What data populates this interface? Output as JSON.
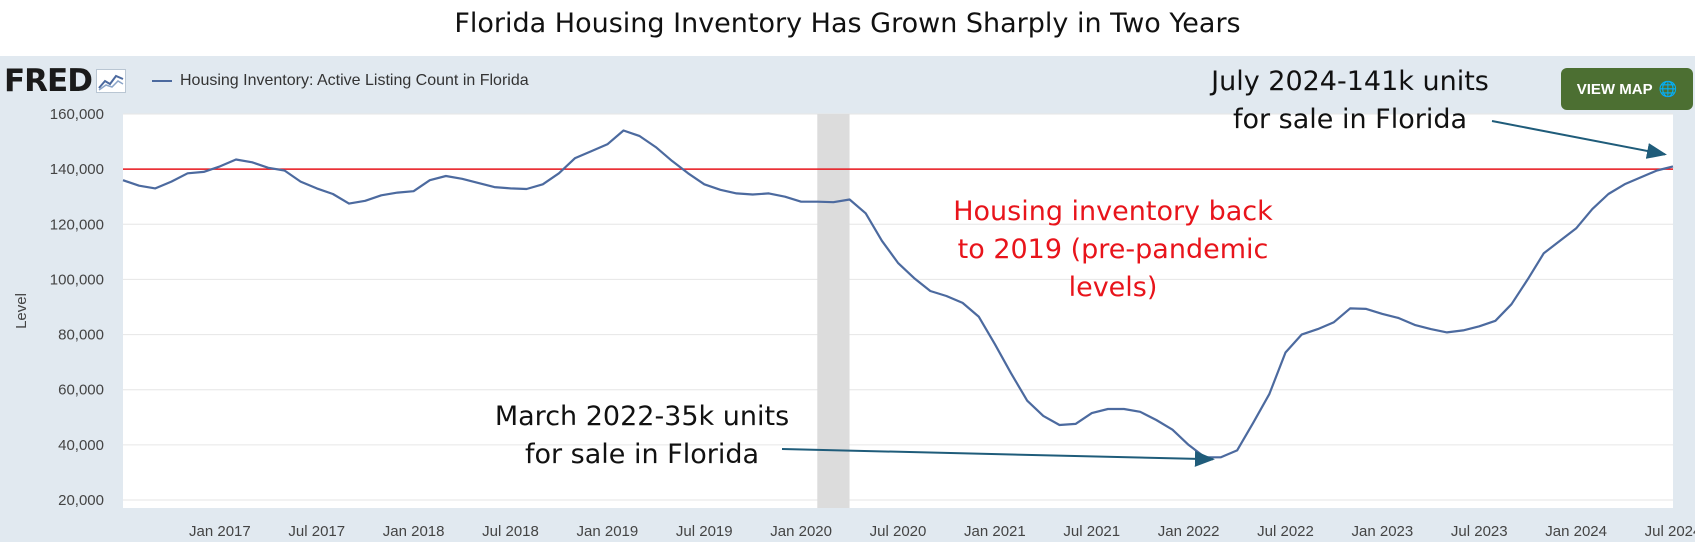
{
  "page_title": "Florida Housing Inventory Has Grown Sharply in Two Years",
  "fred_logo": {
    "text": "FRED",
    "icon": "line-chart-icon"
  },
  "legend": {
    "label": "Housing Inventory: Active Listing Count in Florida"
  },
  "view_map": {
    "label": "VIEW MAP",
    "icon": "globe-icon"
  },
  "colors": {
    "series": "#4c6a9f",
    "reference_line": "#e8141b",
    "annotation_red": "#e8141b",
    "arrow": "#1f5c7a",
    "recession": "#dcdcdc",
    "panel": "#e1e9f0",
    "view_map_button": "#4c6f32"
  },
  "annotations": {
    "top_right": "July 2024-141k units\nfor sale in Florida",
    "middle": "Housing inventory back\nto 2019 (pre-pandemic\nlevels)",
    "bottom": "March 2022-35k units\nfor sale  in Florida"
  },
  "chart_data": {
    "type": "line",
    "title": "",
    "xlabel": "",
    "ylabel": "Level",
    "ylim": [
      20000,
      160000
    ],
    "xlim": [
      "2016-07",
      "2024-07"
    ],
    "grid": true,
    "legend_position": "top-left",
    "yticks": [
      "20,000",
      "40,000",
      "60,000",
      "80,000",
      "100,000",
      "120,000",
      "140,000",
      "160,000"
    ],
    "xticks": [
      "Jan 2017",
      "Jul 2017",
      "Jan 2018",
      "Jul 2018",
      "Jan 2019",
      "Jul 2019",
      "Jan 2020",
      "Jul 2020",
      "Jan 2021",
      "Jul 2021",
      "Jan 2022",
      "Jul 2022",
      "Jan 2023",
      "Jul 2023",
      "Jan 2024",
      "Jul 2024"
    ],
    "reference_line": 140000,
    "recession_shading": [
      "2020-02",
      "2020-04"
    ],
    "series": [
      {
        "name": "Housing Inventory: Active Listing Count in Florida",
        "x": [
          "2016-07",
          "2016-08",
          "2016-09",
          "2016-10",
          "2016-11",
          "2016-12",
          "2017-01",
          "2017-02",
          "2017-03",
          "2017-04",
          "2017-05",
          "2017-06",
          "2017-07",
          "2017-08",
          "2017-09",
          "2017-10",
          "2017-11",
          "2017-12",
          "2018-01",
          "2018-02",
          "2018-03",
          "2018-04",
          "2018-05",
          "2018-06",
          "2018-07",
          "2018-08",
          "2018-09",
          "2018-10",
          "2018-11",
          "2018-12",
          "2019-01",
          "2019-02",
          "2019-03",
          "2019-04",
          "2019-05",
          "2019-06",
          "2019-07",
          "2019-08",
          "2019-09",
          "2019-10",
          "2019-11",
          "2019-12",
          "2020-01",
          "2020-02",
          "2020-03",
          "2020-04",
          "2020-05",
          "2020-06",
          "2020-07",
          "2020-08",
          "2020-09",
          "2020-10",
          "2020-11",
          "2020-12",
          "2021-01",
          "2021-02",
          "2021-03",
          "2021-04",
          "2021-05",
          "2021-06",
          "2021-07",
          "2021-08",
          "2021-09",
          "2021-10",
          "2021-11",
          "2021-12",
          "2022-01",
          "2022-02",
          "2022-03",
          "2022-04",
          "2022-05",
          "2022-06",
          "2022-07",
          "2022-08",
          "2022-09",
          "2022-10",
          "2022-11",
          "2022-12",
          "2023-01",
          "2023-02",
          "2023-03",
          "2023-04",
          "2023-05",
          "2023-06",
          "2023-07",
          "2023-08",
          "2023-09",
          "2023-10",
          "2023-11",
          "2023-12",
          "2024-01",
          "2024-02",
          "2024-03",
          "2024-04",
          "2024-05",
          "2024-06",
          "2024-07"
        ],
        "values": [
          136000,
          134000,
          133000,
          135500,
          138500,
          139000,
          141000,
          143500,
          142500,
          140500,
          139500,
          135500,
          133000,
          131000,
          127500,
          128500,
          130500,
          131500,
          132000,
          136000,
          137500,
          136500,
          135000,
          133500,
          133000,
          132800,
          134500,
          138500,
          144000,
          146500,
          149000,
          154000,
          152000,
          148000,
          143000,
          138500,
          134500,
          132500,
          131200,
          130800,
          131200,
          130000,
          128200,
          128200,
          128000,
          129000,
          124000,
          114000,
          106000,
          100500,
          95800,
          94000,
          91500,
          86500,
          76500,
          66000,
          56000,
          50500,
          47200,
          47600,
          51500,
          53000,
          53000,
          52000,
          49000,
          45500,
          40000,
          35500,
          35500,
          38000,
          48000,
          58500,
          73500,
          80000,
          82000,
          84500,
          89500,
          89300,
          87500,
          86000,
          83500,
          82000,
          80800,
          81500,
          83000,
          85000,
          91000,
          100000,
          109500,
          114000,
          118500,
          125500,
          131000,
          134500,
          137000,
          139500,
          141000
        ]
      }
    ]
  }
}
